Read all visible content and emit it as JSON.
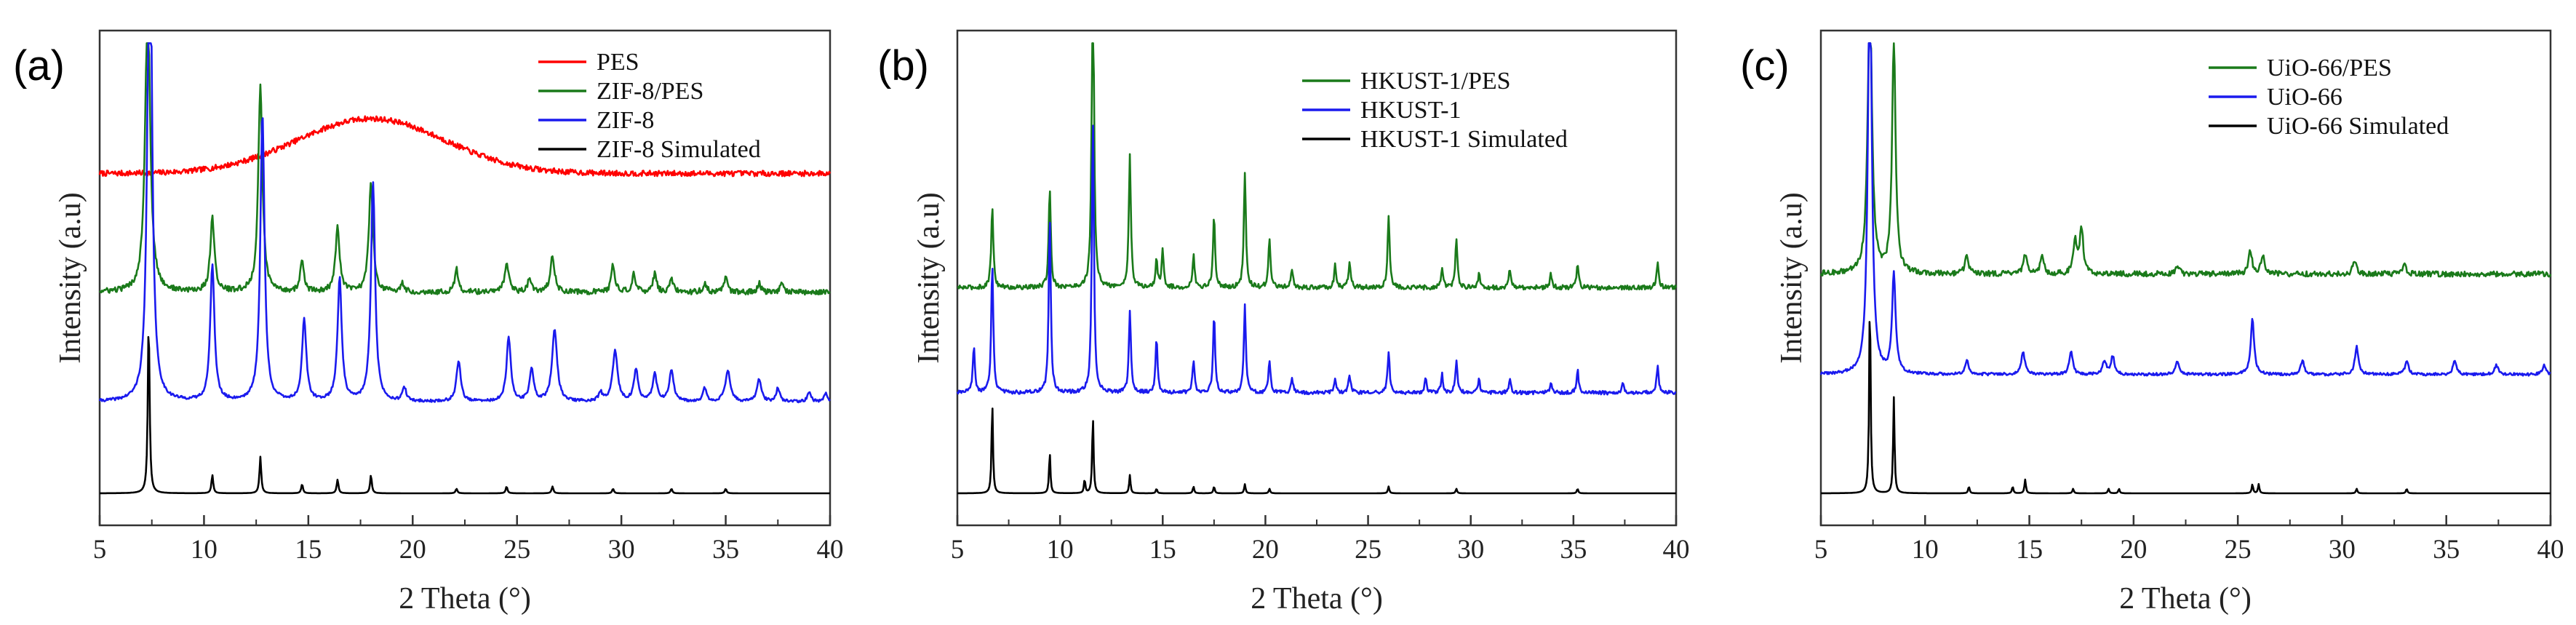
{
  "figure": {
    "panel_count": 3
  },
  "chart_data": [
    {
      "type": "line",
      "panel_label": "(a)",
      "xlabel": "2 Theta (°)",
      "ylabel": "Intensity (a.u)",
      "xlim": [
        5,
        40
      ],
      "x_ticks": [
        5,
        10,
        15,
        20,
        25,
        30,
        35,
        40
      ],
      "y_ticks_shown": false,
      "legend": {
        "position": "top-right"
      },
      "series": [
        {
          "name": "PES",
          "color": "#ff0000",
          "offset": 0.7,
          "noise": 0.006,
          "hump": {
            "center": 18.0,
            "width": 5.0,
            "height": 0.12
          },
          "peaks": []
        },
        {
          "name": "ZIF-8/PES",
          "color": "#1a7a1a",
          "offset": 0.44,
          "noise": 0.006,
          "peaks": [
            [
              7.3,
              0.66,
              0.14
            ],
            [
              10.4,
              0.16,
              0.12
            ],
            [
              12.7,
              0.45,
              0.12
            ],
            [
              14.7,
              0.07,
              0.1
            ],
            [
              16.4,
              0.14,
              0.12
            ],
            [
              18.0,
              0.24,
              0.12
            ],
            [
              19.5,
              0.02,
              0.1
            ],
            [
              22.1,
              0.05,
              0.1
            ],
            [
              24.5,
              0.06,
              0.12
            ],
            [
              25.6,
              0.03,
              0.1
            ],
            [
              26.7,
              0.08,
              0.12
            ],
            [
              29.6,
              0.06,
              0.1
            ],
            [
              30.6,
              0.04,
              0.1
            ],
            [
              31.6,
              0.04,
              0.1
            ],
            [
              32.4,
              0.03,
              0.1
            ],
            [
              34.0,
              0.02,
              0.1
            ],
            [
              35.0,
              0.03,
              0.1
            ],
            [
              36.6,
              0.02,
              0.1
            ],
            [
              37.7,
              0.02,
              0.1
            ]
          ]
        },
        {
          "name": "ZIF-8",
          "color": "#1a1aee",
          "offset": 0.2,
          "noise": 0.003,
          "peaks": [
            [
              7.4,
              1.2,
              0.12
            ],
            [
              10.4,
              0.3,
              0.12
            ],
            [
              12.8,
              0.63,
              0.12
            ],
            [
              14.8,
              0.18,
              0.12
            ],
            [
              16.5,
              0.27,
              0.12
            ],
            [
              18.1,
              0.48,
              0.12
            ],
            [
              19.6,
              0.03,
              0.1
            ],
            [
              22.2,
              0.09,
              0.12
            ],
            [
              24.6,
              0.14,
              0.12
            ],
            [
              25.7,
              0.07,
              0.12
            ],
            [
              26.8,
              0.16,
              0.14
            ],
            [
              29.0,
              0.02,
              0.1
            ],
            [
              29.7,
              0.11,
              0.14
            ],
            [
              30.7,
              0.07,
              0.12
            ],
            [
              31.6,
              0.06,
              0.12
            ],
            [
              32.4,
              0.07,
              0.12
            ],
            [
              34.0,
              0.03,
              0.1
            ],
            [
              35.1,
              0.07,
              0.14
            ],
            [
              36.6,
              0.05,
              0.12
            ],
            [
              37.5,
              0.03,
              0.1
            ],
            [
              39.0,
              0.02,
              0.1
            ],
            [
              39.8,
              0.02,
              0.1
            ]
          ]
        },
        {
          "name": "ZIF-8 Simulated",
          "color": "#000000",
          "offset": 0.0,
          "noise": 0.0,
          "peaks": [
            [
              7.35,
              0.38,
              0.05
            ],
            [
              10.4,
              0.04,
              0.05
            ],
            [
              12.7,
              0.08,
              0.05
            ],
            [
              14.7,
              0.02,
              0.05
            ],
            [
              16.4,
              0.03,
              0.05
            ],
            [
              18.0,
              0.04,
              0.05
            ],
            [
              22.1,
              0.01,
              0.05
            ],
            [
              24.5,
              0.015,
              0.05
            ],
            [
              26.7,
              0.015,
              0.05
            ],
            [
              29.6,
              0.01,
              0.05
            ],
            [
              32.4,
              0.01,
              0.05
            ],
            [
              35.0,
              0.01,
              0.05
            ]
          ]
        }
      ]
    },
    {
      "type": "line",
      "panel_label": "(b)",
      "xlabel": "2 Theta (°)",
      "ylabel": "Intensity (a.u)",
      "xlim": [
        5,
        40
      ],
      "x_ticks": [
        5,
        10,
        15,
        20,
        25,
        30,
        35,
        40
      ],
      "y_ticks_shown": false,
      "legend": {
        "position": "top-right"
      },
      "series": [
        {
          "name": "HKUST-1/PES",
          "color": "#1a7a1a",
          "offset": 0.45,
          "noise": 0.005,
          "peaks": [
            [
              6.7,
              0.18,
              0.06
            ],
            [
              9.5,
              0.22,
              0.06
            ],
            [
              11.6,
              0.78,
              0.06
            ],
            [
              13.4,
              0.29,
              0.06
            ],
            [
              14.7,
              0.06,
              0.06
            ],
            [
              15.0,
              0.08,
              0.06
            ],
            [
              16.5,
              0.07,
              0.06
            ],
            [
              17.5,
              0.16,
              0.06
            ],
            [
              19.0,
              0.25,
              0.06
            ],
            [
              20.2,
              0.11,
              0.06
            ],
            [
              21.3,
              0.04,
              0.06
            ],
            [
              23.4,
              0.05,
              0.06
            ],
            [
              24.1,
              0.06,
              0.06
            ],
            [
              26.0,
              0.16,
              0.06
            ],
            [
              28.6,
              0.04,
              0.06
            ],
            [
              29.3,
              0.11,
              0.06
            ],
            [
              30.4,
              0.03,
              0.06
            ],
            [
              31.9,
              0.04,
              0.06
            ],
            [
              33.9,
              0.03,
              0.06
            ],
            [
              35.2,
              0.05,
              0.06
            ],
            [
              39.1,
              0.06,
              0.06
            ]
          ]
        },
        {
          "name": "HKUST-1",
          "color": "#1a1aee",
          "offset": 0.22,
          "noise": 0.004,
          "peaks": [
            [
              5.8,
              0.1,
              0.06
            ],
            [
              6.7,
              0.28,
              0.06
            ],
            [
              9.5,
              0.38,
              0.06
            ],
            [
              11.6,
              0.6,
              0.06
            ],
            [
              13.4,
              0.18,
              0.06
            ],
            [
              14.7,
              0.12,
              0.06
            ],
            [
              16.5,
              0.07,
              0.06
            ],
            [
              17.5,
              0.17,
              0.06
            ],
            [
              19.0,
              0.19,
              0.06
            ],
            [
              20.2,
              0.07,
              0.06
            ],
            [
              21.3,
              0.03,
              0.06
            ],
            [
              23.4,
              0.03,
              0.06
            ],
            [
              24.1,
              0.04,
              0.06
            ],
            [
              26.0,
              0.09,
              0.06
            ],
            [
              27.8,
              0.03,
              0.06
            ],
            [
              28.6,
              0.04,
              0.06
            ],
            [
              29.3,
              0.07,
              0.06
            ],
            [
              30.4,
              0.03,
              0.06
            ],
            [
              31.9,
              0.03,
              0.06
            ],
            [
              33.9,
              0.02,
              0.06
            ],
            [
              35.2,
              0.05,
              0.06
            ],
            [
              37.4,
              0.02,
              0.06
            ],
            [
              39.1,
              0.06,
              0.06
            ]
          ]
        },
        {
          "name": "HKUST-1 Simulated",
          "color": "#000000",
          "offset": 0.0,
          "noise": 0.0,
          "peaks": [
            [
              6.7,
              0.2,
              0.04
            ],
            [
              9.5,
              0.09,
              0.04
            ],
            [
              11.2,
              0.03,
              0.04
            ],
            [
              11.6,
              0.17,
              0.04
            ],
            [
              13.4,
              0.04,
              0.04
            ],
            [
              14.7,
              0.01,
              0.04
            ],
            [
              16.5,
              0.015,
              0.04
            ],
            [
              17.5,
              0.015,
              0.04
            ],
            [
              19.0,
              0.02,
              0.04
            ],
            [
              20.2,
              0.01,
              0.04
            ],
            [
              26.0,
              0.015,
              0.04
            ],
            [
              29.3,
              0.01,
              0.04
            ],
            [
              35.2,
              0.01,
              0.04
            ]
          ]
        }
      ]
    },
    {
      "type": "line",
      "panel_label": "(c)",
      "xlabel": "2 Theta (°)",
      "ylabel": "Intensity (a.u)",
      "xlim": [
        5,
        40
      ],
      "x_ticks": [
        5,
        10,
        15,
        20,
        25,
        30,
        35,
        40
      ],
      "y_ticks_shown": false,
      "legend": {
        "position": "top-right"
      },
      "series": [
        {
          "name": "UiO-66/PES",
          "color": "#1a7a1a",
          "offset": 0.48,
          "noise": 0.006,
          "peaks": [
            [
              7.35,
              0.62,
              0.12
            ],
            [
              8.5,
              0.52,
              0.1
            ],
            [
              12.0,
              0.04,
              0.1
            ],
            [
              14.8,
              0.04,
              0.1
            ],
            [
              15.6,
              0.04,
              0.1
            ],
            [
              17.2,
              0.07,
              0.1
            ],
            [
              17.5,
              0.1,
              0.1
            ],
            [
              22.1,
              0.02,
              0.1
            ],
            [
              25.6,
              0.05,
              0.1
            ],
            [
              26.2,
              0.04,
              0.1
            ],
            [
              30.6,
              0.03,
              0.1
            ],
            [
              33.0,
              0.02,
              0.1
            ]
          ]
        },
        {
          "name": "UiO-66",
          "color": "#1a1aee",
          "offset": 0.26,
          "noise": 0.003,
          "peaks": [
            [
              7.35,
              0.92,
              0.11
            ],
            [
              8.5,
              0.22,
              0.1
            ],
            [
              12.0,
              0.03,
              0.1
            ],
            [
              14.7,
              0.05,
              0.1
            ],
            [
              17.0,
              0.05,
              0.1
            ],
            [
              18.6,
              0.03,
              0.1
            ],
            [
              19.0,
              0.04,
              0.1
            ],
            [
              22.1,
              0.03,
              0.1
            ],
            [
              25.7,
              0.12,
              0.1
            ],
            [
              28.1,
              0.03,
              0.1
            ],
            [
              30.7,
              0.06,
              0.1
            ],
            [
              33.1,
              0.03,
              0.1
            ],
            [
              35.4,
              0.03,
              0.1
            ],
            [
              37.4,
              0.02,
              0.1
            ],
            [
              39.7,
              0.02,
              0.1
            ]
          ]
        },
        {
          "name": "UiO-66 Simulated",
          "color": "#000000",
          "offset": 0.0,
          "noise": 0.0,
          "peaks": [
            [
              7.35,
              0.44,
              0.04
            ],
            [
              8.5,
              0.21,
              0.04
            ],
            [
              12.1,
              0.015,
              0.04
            ],
            [
              14.2,
              0.015,
              0.04
            ],
            [
              14.8,
              0.03,
              0.04
            ],
            [
              17.1,
              0.01,
              0.04
            ],
            [
              18.8,
              0.01,
              0.04
            ],
            [
              19.3,
              0.01,
              0.04
            ],
            [
              25.7,
              0.02,
              0.04
            ],
            [
              26.0,
              0.02,
              0.04
            ],
            [
              30.7,
              0.01,
              0.04
            ],
            [
              33.1,
              0.01,
              0.04
            ]
          ]
        }
      ]
    }
  ]
}
